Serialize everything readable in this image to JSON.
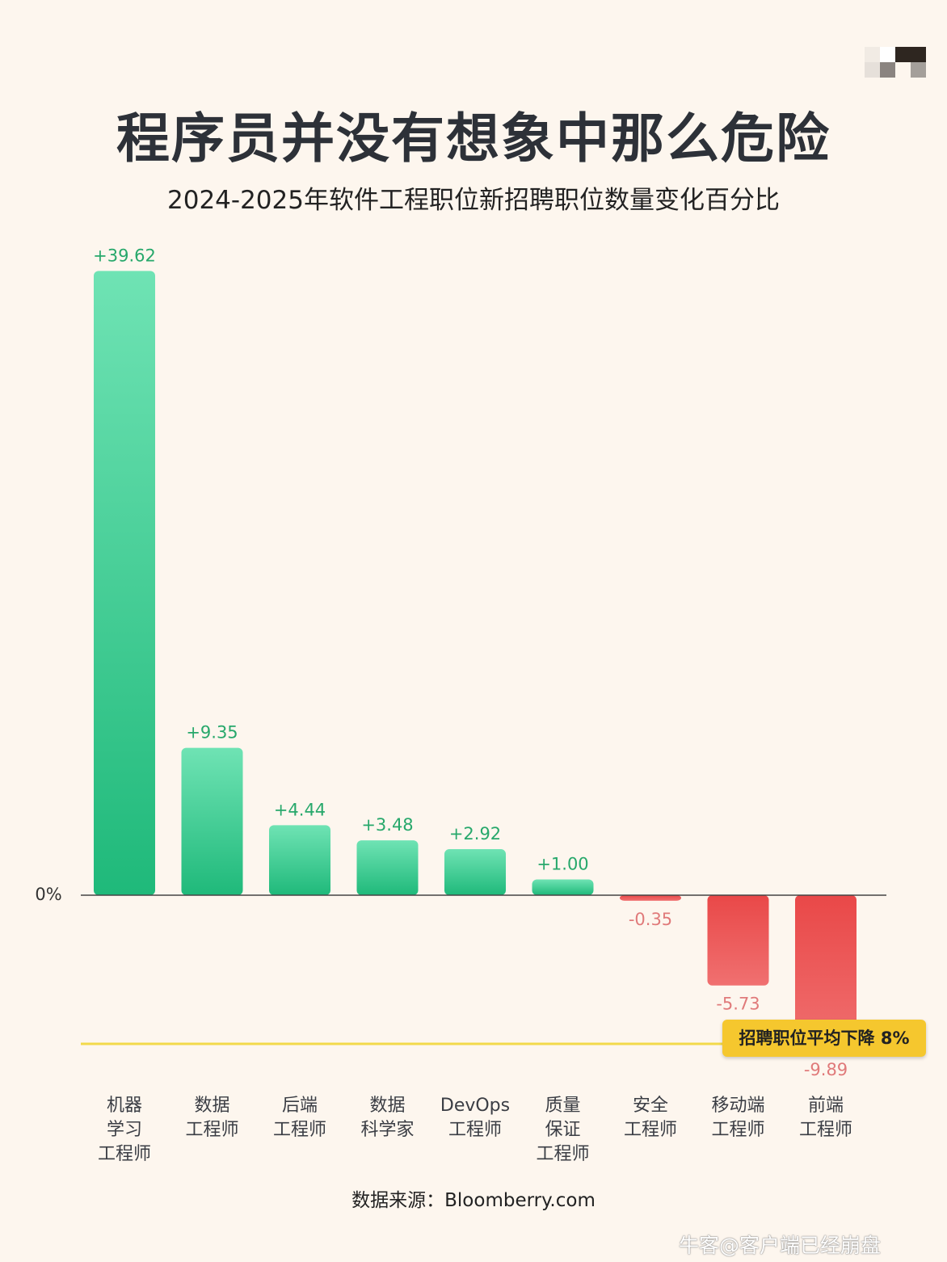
{
  "title": "程序员并没有想象中那么危险",
  "subtitle": "2024-2025年软件工程职位新招聘职位数量变化百分比",
  "source": "数据来源：Bloomberry.com",
  "watermark": "牛客@客户端已经崩盘",
  "colors": {
    "positive": "#2ec98a",
    "negative": "#ec5a5a",
    "positive_label": "#27a86b",
    "negative_label": "#e07a7a",
    "average_line": "#f2d94a",
    "badge": "#f5c72e",
    "background": "#fdf6ee"
  },
  "chart_data": {
    "type": "bar",
    "title": "2024-2025年软件工程职位新招聘职位数量变化百分比",
    "categories": [
      [
        "机器",
        "学习",
        "工程师"
      ],
      [
        "数据",
        "工程师"
      ],
      [
        "后端",
        "工程师"
      ],
      [
        "数据",
        "科学家"
      ],
      [
        "DevOps",
        "工程师"
      ],
      [
        "质量",
        "保证",
        "工程师"
      ],
      [
        "安全",
        "工程师"
      ],
      [
        "移动端",
        "工程师"
      ],
      [
        "前端",
        "工程师"
      ]
    ],
    "values": [
      39.62,
      9.35,
      4.44,
      3.48,
      2.92,
      1.0,
      -0.35,
      -5.73,
      -9.89
    ],
    "value_labels": [
      "+39.62",
      "+9.35",
      "+4.44",
      "+3.48",
      "+2.92",
      "+1.00",
      "-0.35",
      "-5.73",
      "-9.89"
    ],
    "zero_label": "0%",
    "reference_line": {
      "value": -8,
      "label": "招聘职位平均下降 8%"
    },
    "ylim": [
      -10,
      40
    ],
    "grid": false,
    "legend": "none"
  }
}
